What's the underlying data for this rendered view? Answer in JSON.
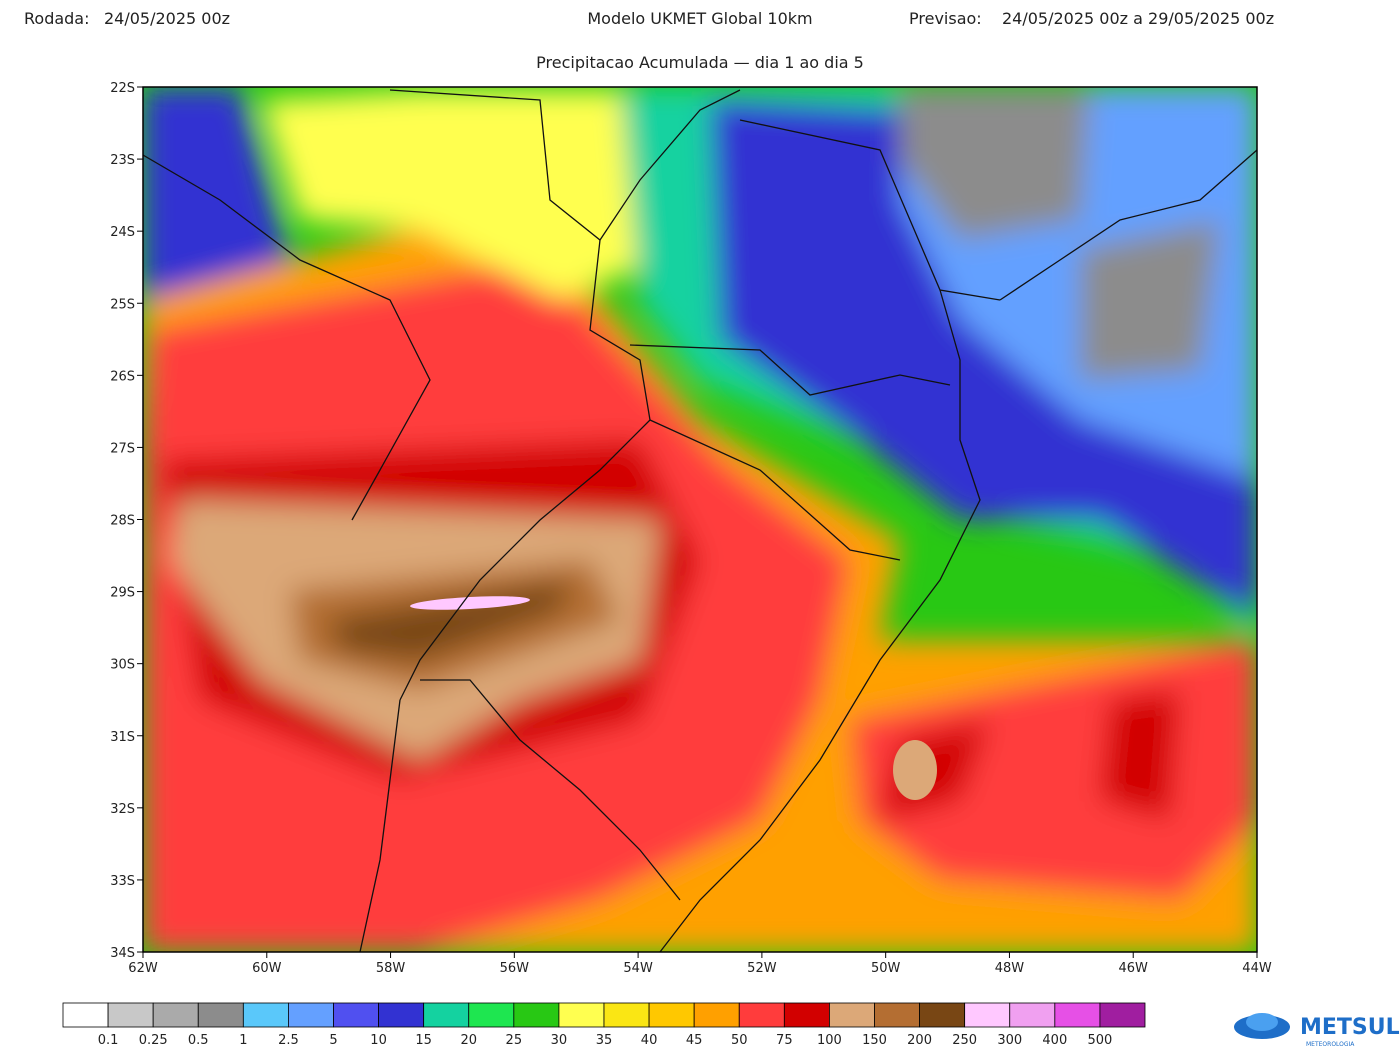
{
  "header": {
    "run_label": "Rodada:",
    "run_value": "24/05/2025 00z",
    "model": "Modelo UKMET Global 10km",
    "forecast_label": "Previsao:",
    "forecast_value": "24/05/2025 00z a 29/05/2025 00z",
    "subtitle": "Precipitacao Acumulada — dia 1 ao dia 5"
  },
  "map": {
    "lat_labels": [
      "22S",
      "23S",
      "24S",
      "25S",
      "26S",
      "27S",
      "28S",
      "29S",
      "30S",
      "31S",
      "32S",
      "33S",
      "34S"
    ],
    "lon_labels": [
      "62W",
      "60W",
      "58W",
      "56W",
      "54W",
      "52W",
      "50W",
      "48W",
      "46W",
      "44W"
    ]
  },
  "colorbar": {
    "colors": [
      "#ffffff",
      "#c8c8c8",
      "#aaaaaa",
      "#8c8c8c",
      "#5ac8fa",
      "#64a0ff",
      "#5050f0",
      "#3232d2",
      "#14d2a0",
      "#1ee650",
      "#28c814",
      "#ffff50",
      "#fae614",
      "#ffc800",
      "#ffa000",
      "#ff3c3c",
      "#d20000",
      "#dca878",
      "#b46e32",
      "#784614",
      "#ffc8ff",
      "#f0a0f0",
      "#e650e6",
      "#a01ea0"
    ],
    "labels": [
      "0.1",
      "0.25",
      "0.5",
      "1",
      "2.5",
      "5",
      "10",
      "15",
      "20",
      "25",
      "30",
      "35",
      "40",
      "45",
      "50",
      "75",
      "100",
      "150",
      "200",
      "250",
      "300",
      "400",
      "500"
    ]
  },
  "logo": {
    "text": "METSUL",
    "subtext": "METEOROLOGIA"
  }
}
